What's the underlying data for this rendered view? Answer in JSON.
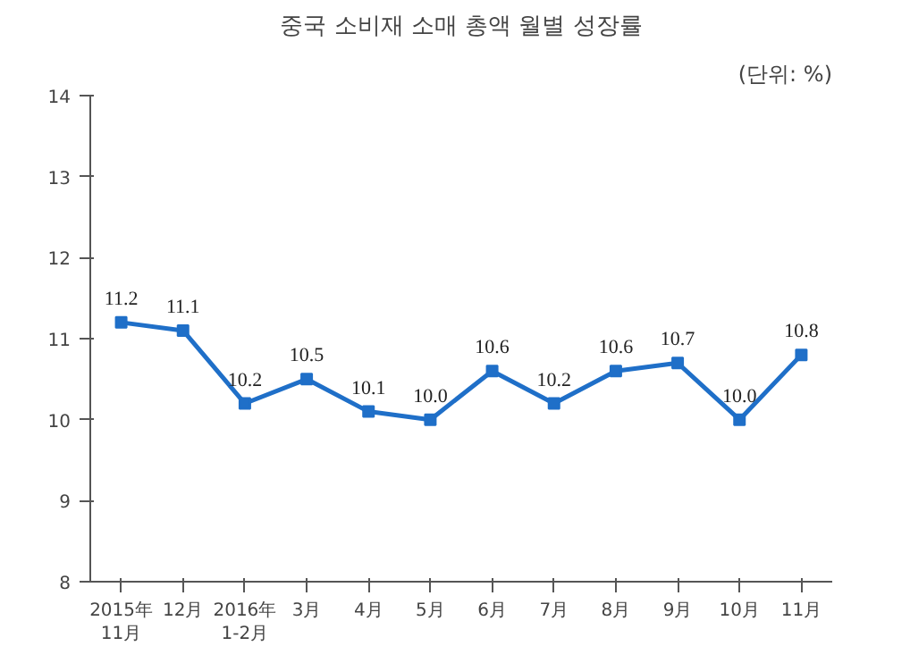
{
  "chart_data": {
    "type": "line",
    "title": "중국 소비재 소매 총액 월별 성장률",
    "subtitle": "(단위: %)",
    "categories": [
      "2015年\n11月",
      "12月",
      "2016年\n1-2月",
      "3月",
      "4月",
      "5月",
      "6月",
      "7月",
      "8月",
      "9月",
      "10月",
      "11月"
    ],
    "values": [
      11.2,
      11.1,
      10.2,
      10.5,
      10.1,
      10.0,
      10.6,
      10.2,
      10.6,
      10.7,
      10.0,
      10.8
    ],
    "value_labels": [
      "11.2",
      "11.1",
      "10.2",
      "10.5",
      "10.1",
      "10.0",
      "10.6",
      "10.2",
      "10.6",
      "10.7",
      "10.0",
      "10.8"
    ],
    "color": "#1f6fc8",
    "ylim": [
      8,
      14
    ],
    "yticks": [
      8,
      9,
      10,
      11,
      12,
      13,
      14
    ],
    "grid": false,
    "marker": "square",
    "line_style": "solid"
  }
}
